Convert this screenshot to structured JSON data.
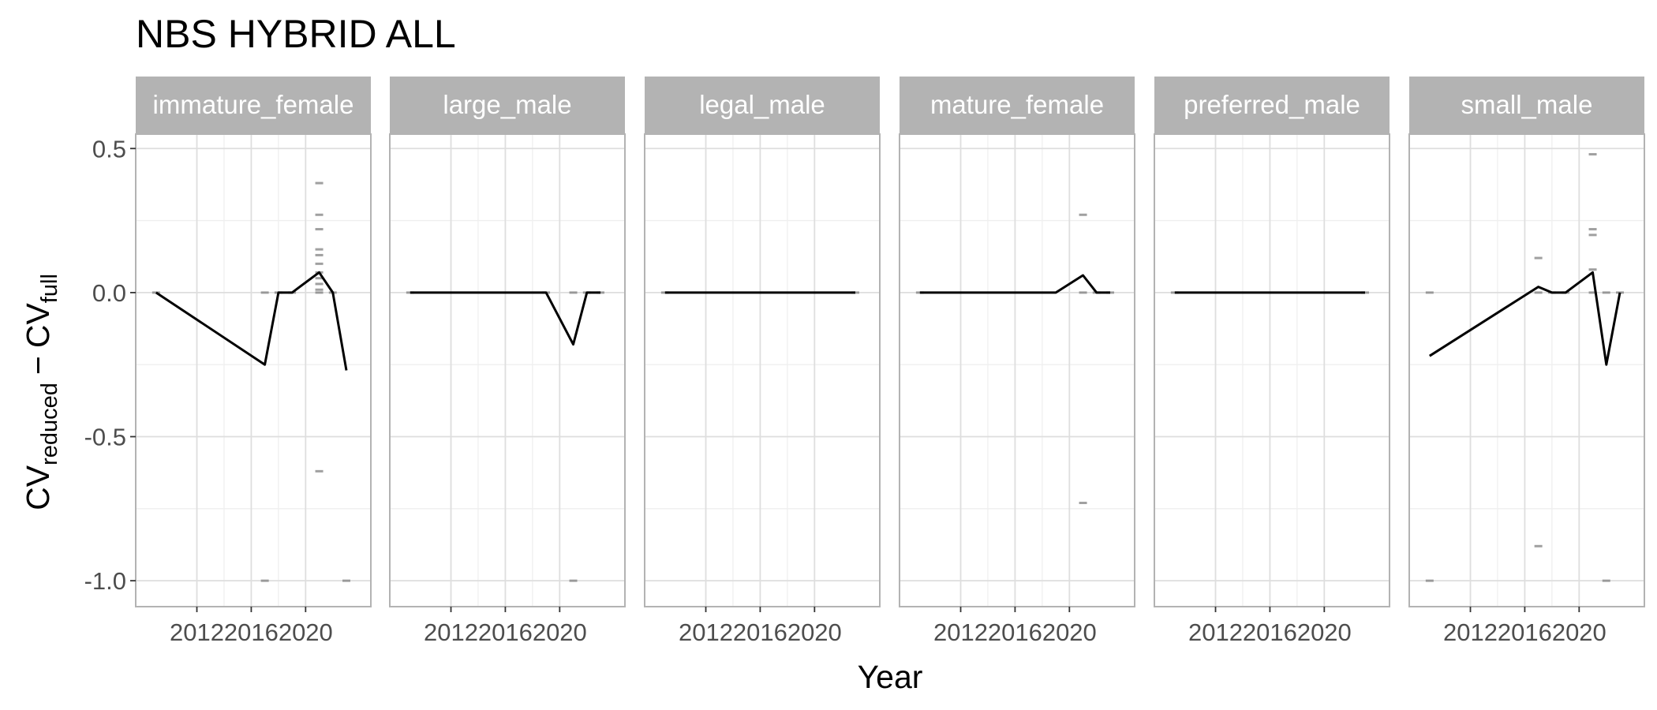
{
  "chart_data": {
    "type": "line",
    "title": "NBS HYBRID ALL",
    "xlabel": "Year",
    "ylabel": {
      "main1": "CV",
      "sub1": "reduced",
      "minus": "−",
      "main2": "CV",
      "sub2": "full"
    },
    "xlim": [
      2007.5,
      2024.8
    ],
    "ylim": [
      -1.09,
      0.55
    ],
    "x_ticks": [
      2012,
      2016,
      2020
    ],
    "x_tick_labels": [
      "2012",
      "2016",
      "2020"
    ],
    "y_ticks": [
      0.5,
      0.0,
      -0.5,
      -1.0
    ],
    "y_tick_labels": [
      "0.5",
      "0.0",
      "-0.5",
      "-1.0"
    ],
    "grid": true,
    "colors": {
      "strip_background": "#b3b3b3",
      "panel_border": "#b3b3b3",
      "grid_major": "#dedede",
      "grid_minor": "#efefef",
      "line": "#000000",
      "points": "#808080"
    },
    "panels": [
      {
        "label": "immature_female",
        "line": {
          "x": [
            2009,
            2017,
            2018,
            2019,
            2021,
            2022,
            2023
          ],
          "y": [
            0.0,
            -0.25,
            0.0,
            0.0,
            0.07,
            0.0,
            -0.27
          ]
        },
        "points": {
          "x": [
            2009,
            2017,
            2018,
            2019,
            2021,
            2021,
            2021,
            2021,
            2021,
            2021,
            2021,
            2021,
            2021,
            2021,
            2021,
            2021,
            2022,
            2017,
            2023
          ],
          "y": [
            0.0,
            0.0,
            0.0,
            0.0,
            0.38,
            0.27,
            0.22,
            0.15,
            0.13,
            0.1,
            0.07,
            0.05,
            0.03,
            0.01,
            0.0,
            -0.62,
            0.0,
            -1.0,
            -1.0
          ]
        }
      },
      {
        "label": "large_male",
        "line": {
          "x": [
            2009,
            2019,
            2021,
            2022,
            2023
          ],
          "y": [
            0.0,
            0.0,
            -0.18,
            0.0,
            0.0
          ]
        },
        "points": {
          "x": [
            2009,
            2019,
            2021,
            2022,
            2023,
            2021
          ],
          "y": [
            0.0,
            0.0,
            0.0,
            0.0,
            0.0,
            -1.0
          ]
        }
      },
      {
        "label": "legal_male",
        "line": {
          "x": [
            2009,
            2023
          ],
          "y": [
            0.0,
            0.0
          ]
        },
        "points": {
          "x": [
            2009,
            2023
          ],
          "y": [
            0.0,
            0.0
          ]
        }
      },
      {
        "label": "mature_female",
        "line": {
          "x": [
            2009,
            2019,
            2021,
            2022,
            2023
          ],
          "y": [
            0.0,
            0.0,
            0.06,
            0.0,
            0.0
          ]
        },
        "points": {
          "x": [
            2009,
            2021,
            2021,
            2022,
            2023,
            2021
          ],
          "y": [
            0.0,
            0.27,
            0.0,
            0.0,
            0.0,
            -0.73
          ]
        }
      },
      {
        "label": "preferred_male",
        "line": {
          "x": [
            2009,
            2023
          ],
          "y": [
            0.0,
            0.0
          ]
        },
        "points": {
          "x": [
            2009,
            2023
          ],
          "y": [
            0.0,
            0.0
          ]
        }
      },
      {
        "label": "small_male",
        "line": {
          "x": [
            2009,
            2017,
            2018,
            2019,
            2021,
            2022,
            2023
          ],
          "y": [
            -0.22,
            0.02,
            0.0,
            0.0,
            0.07,
            -0.25,
            0.0
          ]
        },
        "points": {
          "x": [
            2009,
            2009,
            2017,
            2017,
            2017,
            2018,
            2019,
            2021,
            2021,
            2021,
            2021,
            2021,
            2022,
            2022,
            2023
          ],
          "y": [
            0.0,
            -1.0,
            0.12,
            0.0,
            -0.88,
            0.0,
            0.0,
            0.48,
            0.22,
            0.2,
            0.08,
            0.0,
            0.0,
            -1.0,
            0.0
          ]
        }
      }
    ]
  }
}
